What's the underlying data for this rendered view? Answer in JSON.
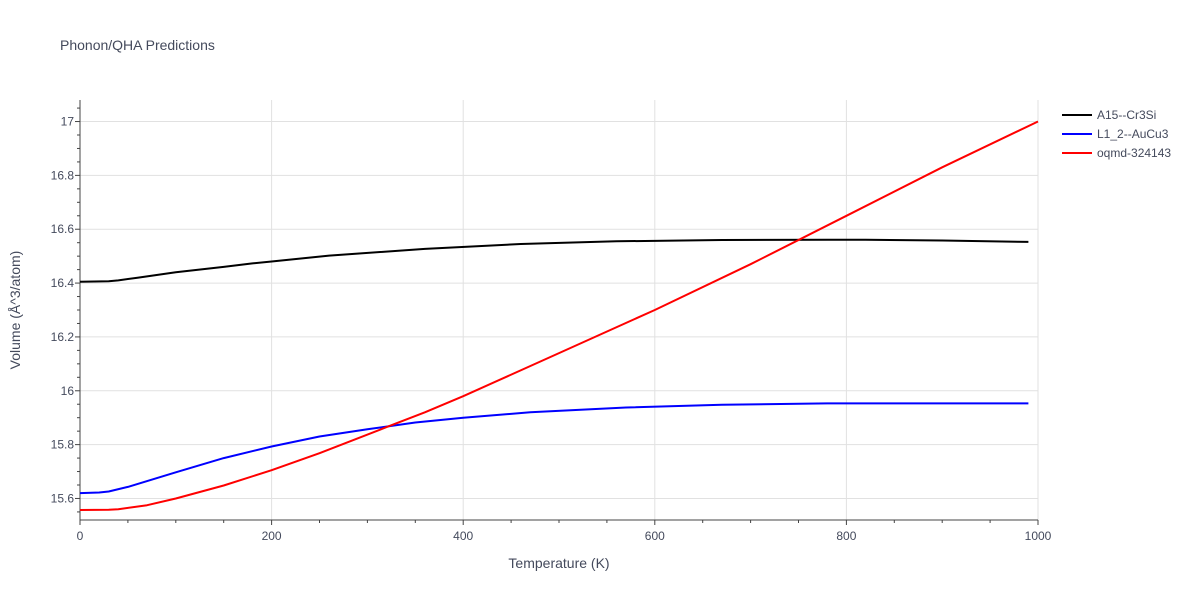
{
  "chart_data": {
    "type": "line",
    "title": "Phonon/QHA Predictions",
    "xlabel": "Temperature (K)",
    "ylabel": "Volume (Å^3/atom)",
    "xlim": [
      0,
      1000
    ],
    "ylim": [
      15.52,
      17.08
    ],
    "grid": true,
    "legend_position": "top-right",
    "x_ticks": [
      0,
      200,
      400,
      600,
      800,
      1000
    ],
    "x_tick_labels": [
      "0",
      "200",
      "400",
      "600",
      "800",
      "1000"
    ],
    "y_ticks": [
      15.6,
      15.8,
      16.0,
      16.2,
      16.4,
      16.6,
      16.8,
      17.0
    ],
    "y_tick_labels": [
      "15.6",
      "15.8",
      "16",
      "16.2",
      "16.4",
      "16.6",
      "16.8",
      "17"
    ],
    "series": [
      {
        "name": "A15--Cr3Si",
        "color": "#000000",
        "x": [
          0,
          30,
          40,
          60,
          100,
          150,
          180,
          200,
          260,
          360,
          460,
          560,
          670,
          780,
          820,
          900,
          990
        ],
        "y": [
          16.405,
          16.407,
          16.41,
          16.42,
          16.44,
          16.46,
          16.473,
          16.48,
          16.502,
          16.527,
          16.545,
          16.555,
          16.56,
          16.561,
          16.561,
          16.558,
          16.553
        ]
      },
      {
        "name": "L1_2--AuCu3",
        "color": "#0000ff",
        "x": [
          0,
          20,
          30,
          50,
          100,
          150,
          200,
          250,
          300,
          350,
          400,
          470,
          570,
          670,
          780,
          900,
          990
        ],
        "y": [
          15.62,
          15.622,
          15.626,
          15.643,
          15.697,
          15.75,
          15.793,
          15.83,
          15.857,
          15.882,
          15.9,
          15.92,
          15.938,
          15.948,
          15.953,
          15.953,
          15.953
        ]
      },
      {
        "name": "oqmd-324143",
        "color": "#ff0000",
        "x": [
          0,
          30,
          40,
          70,
          100,
          150,
          200,
          250,
          320,
          360,
          400,
          500,
          600,
          700,
          800,
          900,
          1000
        ],
        "y": [
          15.557,
          15.558,
          15.56,
          15.575,
          15.6,
          15.648,
          15.705,
          15.768,
          15.865,
          15.92,
          15.98,
          16.14,
          16.3,
          16.47,
          16.65,
          16.83,
          17.0
        ]
      }
    ]
  }
}
